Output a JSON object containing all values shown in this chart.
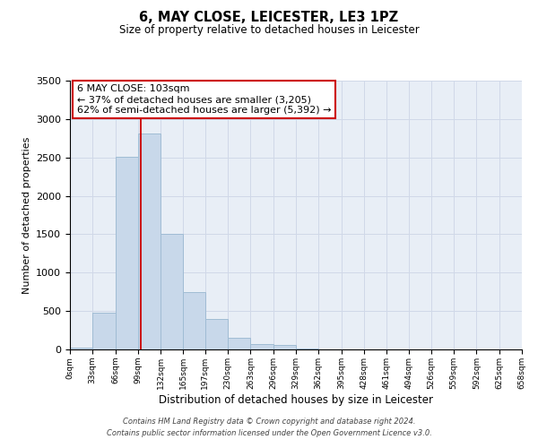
{
  "title": "6, MAY CLOSE, LEICESTER, LE3 1PZ",
  "subtitle": "Size of property relative to detached houses in Leicester",
  "xlabel": "Distribution of detached houses by size in Leicester",
  "ylabel": "Number of detached properties",
  "bar_color": "#c8d8ea",
  "bar_edgecolor": "#a0bcd4",
  "bin_edges": [
    0,
    33,
    66,
    99,
    132,
    165,
    197,
    230,
    263,
    296,
    329,
    362,
    395,
    428,
    461,
    494,
    526,
    559,
    592,
    625,
    658
  ],
  "bar_heights": [
    22,
    475,
    2510,
    2810,
    1510,
    750,
    400,
    150,
    75,
    55,
    15,
    0,
    0,
    0,
    0,
    0,
    0,
    0,
    0,
    0
  ],
  "tick_labels": [
    "0sqm",
    "33sqm",
    "66sqm",
    "99sqm",
    "132sqm",
    "165sqm",
    "197sqm",
    "230sqm",
    "263sqm",
    "296sqm",
    "329sqm",
    "362sqm",
    "395sqm",
    "428sqm",
    "461sqm",
    "494sqm",
    "526sqm",
    "559sqm",
    "592sqm",
    "625sqm",
    "658sqm"
  ],
  "ylim": [
    0,
    3500
  ],
  "yticks": [
    0,
    500,
    1000,
    1500,
    2000,
    2500,
    3000,
    3500
  ],
  "property_line_x": 103,
  "annotation_title": "6 MAY CLOSE: 103sqm",
  "annotation_line1": "← 37% of detached houses are smaller (3,205)",
  "annotation_line2": "62% of semi-detached houses are larger (5,392) →",
  "annotation_box_color": "#ffffff",
  "annotation_box_edgecolor": "#cc0000",
  "vline_color": "#cc0000",
  "grid_color": "#d0d8e8",
  "bg_color": "#e8eef6",
  "footnote1": "Contains HM Land Registry data © Crown copyright and database right 2024.",
  "footnote2": "Contains public sector information licensed under the Open Government Licence v3.0."
}
